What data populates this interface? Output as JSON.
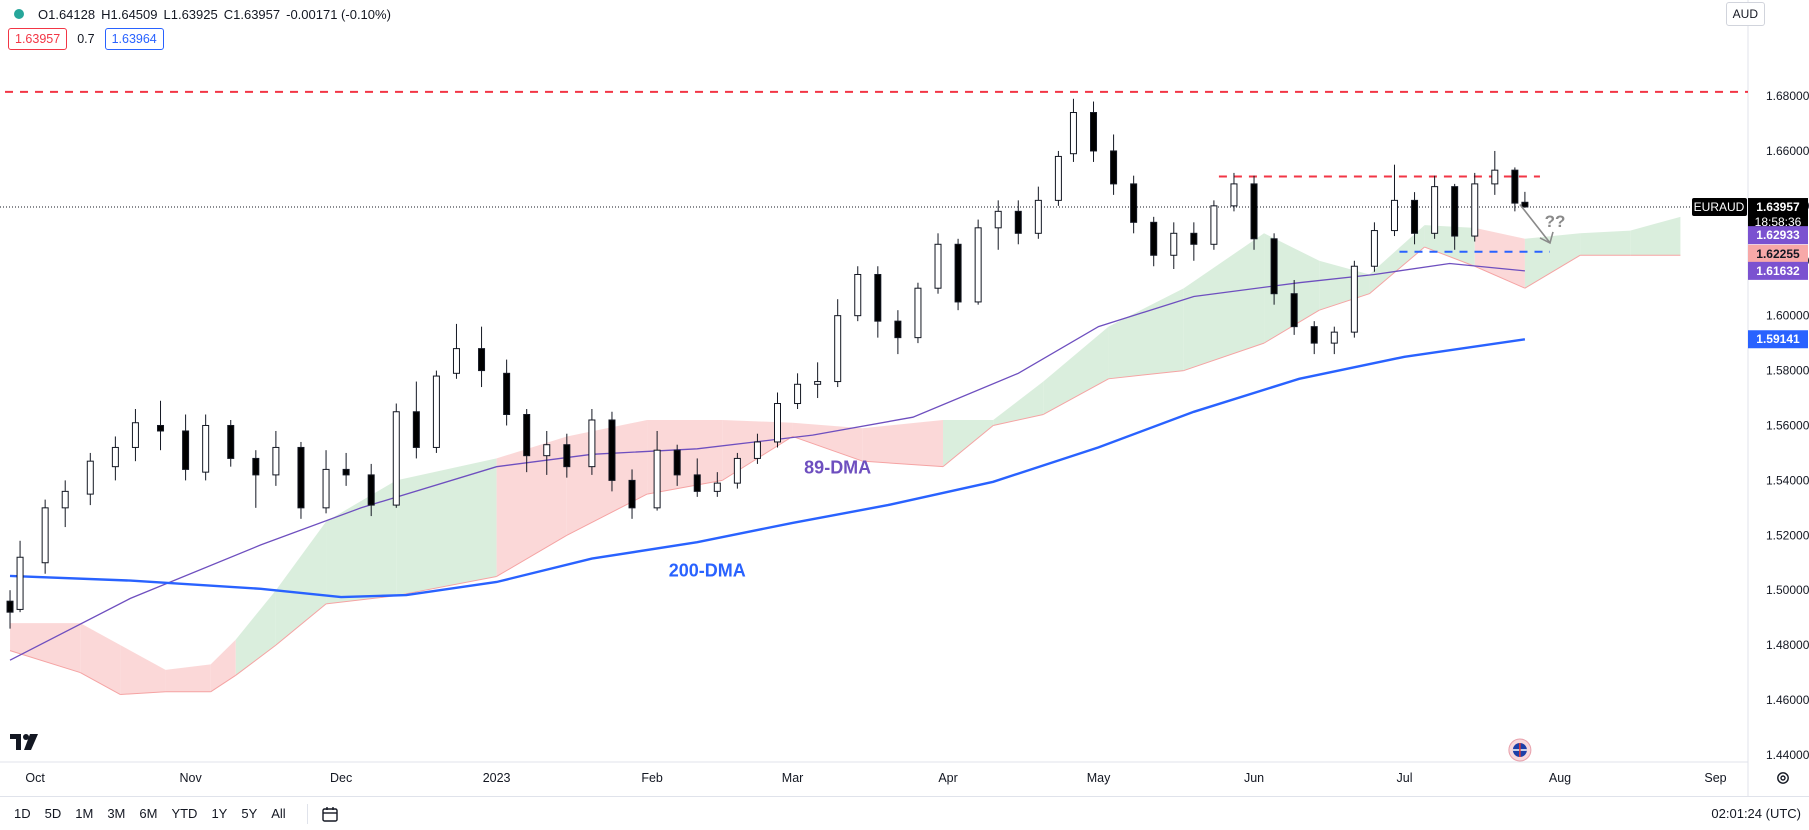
{
  "legend": {
    "open": "O1.64128",
    "high": "H1.64509",
    "low": "L1.63925",
    "close": "C1.63957",
    "change": "-0.00171 (-0.10%)",
    "bid": "1.63957",
    "spread": "0.7",
    "ask": "1.63964"
  },
  "currency": "AUD",
  "symbol_tag": "EURAUD",
  "countdown": "18:58:36",
  "time_ranges": [
    "1D",
    "5D",
    "1M",
    "3M",
    "6M",
    "YTD",
    "1Y",
    "5Y",
    "All"
  ],
  "clock": "02:01:24 (UTC)",
  "colors": {
    "up": "#ffffff",
    "down": "#000000",
    "dma200": "#2962ff",
    "dma89": "#6e4fbf",
    "cloud_bull": "#d6ecd9",
    "cloud_bear": "#fbd4d4",
    "resistance": "#f23645",
    "support": "#2962ff"
  },
  "chart_data": {
    "type": "candlestick",
    "y_ticks": [
      "1.68000",
      "1.66000",
      "1.64000",
      "1.62000",
      "1.60000",
      "1.58000",
      "1.56000",
      "1.54000",
      "1.52000",
      "1.50000",
      "1.48000",
      "1.46000",
      "1.44000"
    ],
    "ylim": [
      1.4254,
      1.6924
    ],
    "x_ticks": [
      "Oct",
      "Nov",
      "Dec",
      "2023",
      "Feb",
      "Mar",
      "Apr",
      "May",
      "Jun",
      "Jul",
      "Aug",
      "Sep"
    ],
    "last_price": 1.63957,
    "price_tags": [
      {
        "label": "EURAUD",
        "value": 1.63957,
        "text": "1.63957",
        "color": "#000000"
      },
      {
        "label": "",
        "value": 1.62933,
        "text": "1.62933",
        "color": "#7b52d0"
      },
      {
        "label": "",
        "value": 1.62255,
        "text": "1.62255",
        "color": "#f7a8a8"
      },
      {
        "label": "",
        "value": 1.61632,
        "text": "1.61632",
        "color": "#7b52d0"
      },
      {
        "label": "",
        "value": 1.59141,
        "text": "1.59141",
        "color": "#2962ff"
      }
    ],
    "annotations": [
      {
        "text": "89-DMA",
        "date": "2023-03-10",
        "value": 1.5425,
        "color": "#6e4fbf"
      },
      {
        "text": "200-DMA",
        "date": "2023-02-12",
        "value": 1.505,
        "color": "#2962ff"
      },
      {
        "text": "??",
        "date": "2023-07-31",
        "value": 1.6323,
        "color": "#8a8a8a"
      }
    ],
    "levels": [
      {
        "name": "upper resistance",
        "value": 1.6815,
        "from": "2022-09-25",
        "to": "2023-09-16",
        "color": "#f23645"
      },
      {
        "name": "range top",
        "value": 1.6507,
        "from": "2023-05-25",
        "to": "2023-07-28",
        "color": "#f23645"
      },
      {
        "name": "range floor",
        "value": 1.6233,
        "from": "2023-06-30",
        "to": "2023-07-30",
        "color": "#2962ff"
      }
    ],
    "arrow": {
      "from": [
        "2023-07-24",
        1.6405
      ],
      "to": [
        "2023-07-30",
        1.6265
      ]
    },
    "dma200": [
      [
        "2022-09-26",
        1.5052
      ],
      [
        "2022-10-20",
        1.5035
      ],
      [
        "2022-11-15",
        1.5005
      ],
      [
        "2022-12-01",
        1.4975
      ],
      [
        "2022-12-14",
        1.4982
      ],
      [
        "2023-01-01",
        1.503
      ],
      [
        "2023-01-20",
        1.5115
      ],
      [
        "2023-02-10",
        1.5175
      ],
      [
        "2023-03-01",
        1.5245
      ],
      [
        "2023-03-20",
        1.531
      ],
      [
        "2023-04-10",
        1.5395
      ],
      [
        "2023-05-01",
        1.552
      ],
      [
        "2023-05-20",
        1.565
      ],
      [
        "2023-06-10",
        1.577
      ],
      [
        "2023-07-01",
        1.585
      ],
      [
        "2023-07-25",
        1.5914
      ]
    ],
    "dma89": [
      [
        "2022-09-26",
        1.4745
      ],
      [
        "2022-10-20",
        1.497
      ],
      [
        "2022-11-15",
        1.5165
      ],
      [
        "2022-12-05",
        1.53
      ],
      [
        "2023-01-01",
        1.545
      ],
      [
        "2023-01-20",
        1.5495
      ],
      [
        "2023-02-10",
        1.5515
      ],
      [
        "2023-03-05",
        1.5565
      ],
      [
        "2023-03-25",
        1.563
      ],
      [
        "2023-04-15",
        1.579
      ],
      [
        "2023-05-01",
        1.596
      ],
      [
        "2023-05-20",
        1.607
      ],
      [
        "2023-06-10",
        1.612
      ],
      [
        "2023-06-25",
        1.615
      ],
      [
        "2023-07-10",
        1.619
      ],
      [
        "2023-07-25",
        1.6163
      ]
    ],
    "cloud": [
      [
        "2022-09-26",
        1.488,
        1.478
      ],
      [
        "2022-10-10",
        1.488,
        1.47
      ],
      [
        "2022-10-18",
        1.48,
        1.462
      ],
      [
        "2022-10-27",
        1.471,
        1.463
      ],
      [
        "2022-11-05",
        1.473,
        1.463
      ],
      [
        "2022-11-10",
        1.482,
        1.469
      ],
      [
        "2022-11-18",
        1.5,
        1.48
      ],
      [
        "2022-11-28",
        1.525,
        1.495
      ],
      [
        "2022-12-12",
        1.54,
        1.498
      ],
      [
        "2023-01-01",
        1.548,
        1.505
      ],
      [
        "2023-01-15",
        1.556,
        1.52
      ],
      [
        "2023-01-31",
        1.562,
        1.535
      ],
      [
        "2023-02-15",
        1.562,
        1.54
      ],
      [
        "2023-03-01",
        1.561,
        1.556
      ],
      [
        "2023-03-15",
        1.559,
        1.547
      ],
      [
        "2023-03-31",
        1.562,
        1.545
      ],
      [
        "2023-04-10",
        1.562,
        1.56
      ],
      [
        "2023-04-20",
        1.576,
        1.564
      ],
      [
        "2023-05-03",
        1.596,
        1.577
      ],
      [
        "2023-05-18",
        1.61,
        1.58
      ],
      [
        "2023-06-03",
        1.63,
        1.59
      ],
      [
        "2023-06-14",
        1.62,
        1.602
      ],
      [
        "2023-06-24",
        1.615,
        1.608
      ],
      [
        "2023-07-05",
        1.633,
        1.625
      ],
      [
        "2023-07-15",
        1.632,
        1.618
      ],
      [
        "2023-07-25",
        1.628,
        1.61
      ],
      [
        "2023-08-05",
        1.63,
        1.622
      ],
      [
        "2023-08-15",
        1.631,
        1.622
      ],
      [
        "2023-08-25",
        1.636,
        1.622
      ]
    ],
    "candles": [
      [
        "2022-09-26",
        1.496,
        1.5,
        1.486,
        1.492
      ],
      [
        "2022-09-28",
        1.493,
        1.518,
        1.492,
        1.512
      ],
      [
        "2022-10-03",
        1.51,
        1.533,
        1.506,
        1.53
      ],
      [
        "2022-10-07",
        1.53,
        1.54,
        1.523,
        1.536
      ],
      [
        "2022-10-12",
        1.535,
        1.55,
        1.531,
        1.547
      ],
      [
        "2022-10-17",
        1.545,
        1.556,
        1.54,
        1.552
      ],
      [
        "2022-10-21",
        1.552,
        1.566,
        1.547,
        1.561
      ],
      [
        "2022-10-26",
        1.56,
        1.569,
        1.551,
        1.558
      ],
      [
        "2022-10-31",
        1.558,
        1.564,
        1.54,
        1.544
      ],
      [
        "2022-11-04",
        1.543,
        1.564,
        1.54,
        1.56
      ],
      [
        "2022-11-09",
        1.56,
        1.562,
        1.545,
        1.548
      ],
      [
        "2022-11-14",
        1.548,
        1.551,
        1.53,
        1.542
      ],
      [
        "2022-11-18",
        1.542,
        1.558,
        1.538,
        1.552
      ],
      [
        "2022-11-23",
        1.552,
        1.554,
        1.526,
        1.53
      ],
      [
        "2022-11-28",
        1.53,
        1.551,
        1.528,
        1.544
      ],
      [
        "2022-12-02",
        1.544,
        1.55,
        1.538,
        1.542
      ],
      [
        "2022-12-07",
        1.542,
        1.546,
        1.527,
        1.531
      ],
      [
        "2022-12-12",
        1.531,
        1.568,
        1.53,
        1.565
      ],
      [
        "2022-12-16",
        1.565,
        1.576,
        1.548,
        1.552
      ],
      [
        "2022-12-20",
        1.552,
        1.58,
        1.55,
        1.578
      ],
      [
        "2022-12-24",
        1.579,
        1.597,
        1.577,
        1.588
      ],
      [
        "2022-12-29",
        1.588,
        1.596,
        1.574,
        1.58
      ],
      [
        "2023-01-03",
        1.579,
        1.584,
        1.56,
        1.564
      ],
      [
        "2023-01-07",
        1.564,
        1.566,
        1.543,
        1.549
      ],
      [
        "2023-01-11",
        1.549,
        1.558,
        1.542,
        1.553
      ],
      [
        "2023-01-15",
        1.553,
        1.557,
        1.541,
        1.545
      ],
      [
        "2023-01-20",
        1.545,
        1.566,
        1.542,
        1.562
      ],
      [
        "2023-01-24",
        1.562,
        1.565,
        1.536,
        1.54
      ],
      [
        "2023-01-28",
        1.54,
        1.544,
        1.526,
        1.53
      ],
      [
        "2023-02-02",
        1.53,
        1.558,
        1.529,
        1.551
      ],
      [
        "2023-02-06",
        1.551,
        1.553,
        1.538,
        1.542
      ],
      [
        "2023-02-10",
        1.542,
        1.548,
        1.534,
        1.536
      ],
      [
        "2023-02-14",
        1.536,
        1.543,
        1.534,
        1.539
      ],
      [
        "2023-02-18",
        1.539,
        1.55,
        1.537,
        1.548
      ],
      [
        "2023-02-22",
        1.548,
        1.557,
        1.546,
        1.554
      ],
      [
        "2023-02-26",
        1.554,
        1.572,
        1.552,
        1.568
      ],
      [
        "2023-03-02",
        1.568,
        1.579,
        1.566,
        1.575
      ],
      [
        "2023-03-06",
        1.575,
        1.583,
        1.57,
        1.576
      ],
      [
        "2023-03-10",
        1.576,
        1.606,
        1.574,
        1.6
      ],
      [
        "2023-03-14",
        1.6,
        1.618,
        1.598,
        1.615
      ],
      [
        "2023-03-18",
        1.615,
        1.618,
        1.592,
        1.598
      ],
      [
        "2023-03-22",
        1.598,
        1.602,
        1.586,
        1.592
      ],
      [
        "2023-03-26",
        1.592,
        1.612,
        1.59,
        1.61
      ],
      [
        "2023-03-30",
        1.61,
        1.63,
        1.608,
        1.626
      ],
      [
        "2023-04-03",
        1.626,
        1.628,
        1.602,
        1.605
      ],
      [
        "2023-04-07",
        1.605,
        1.635,
        1.604,
        1.632
      ],
      [
        "2023-04-11",
        1.632,
        1.642,
        1.624,
        1.638
      ],
      [
        "2023-04-15",
        1.638,
        1.642,
        1.626,
        1.63
      ],
      [
        "2023-04-19",
        1.63,
        1.647,
        1.628,
        1.642
      ],
      [
        "2023-04-23",
        1.642,
        1.66,
        1.64,
        1.658
      ],
      [
        "2023-04-26",
        1.659,
        1.679,
        1.656,
        1.674
      ],
      [
        "2023-04-30",
        1.674,
        1.678,
        1.656,
        1.66
      ],
      [
        "2023-05-04",
        1.66,
        1.666,
        1.644,
        1.648
      ],
      [
        "2023-05-08",
        1.648,
        1.651,
        1.63,
        1.634
      ],
      [
        "2023-05-12",
        1.634,
        1.636,
        1.618,
        1.622
      ],
      [
        "2023-05-16",
        1.622,
        1.634,
        1.617,
        1.63
      ],
      [
        "2023-05-20",
        1.63,
        1.634,
        1.62,
        1.626
      ],
      [
        "2023-05-24",
        1.626,
        1.642,
        1.624,
        1.64
      ],
      [
        "2023-05-28",
        1.64,
        1.652,
        1.638,
        1.648
      ],
      [
        "2023-06-01",
        1.648,
        1.651,
        1.624,
        1.628
      ],
      [
        "2023-06-05",
        1.628,
        1.63,
        1.604,
        1.608
      ],
      [
        "2023-06-09",
        1.608,
        1.613,
        1.593,
        1.596
      ],
      [
        "2023-06-13",
        1.596,
        1.598,
        1.586,
        1.59
      ],
      [
        "2023-06-17",
        1.59,
        1.596,
        1.586,
        1.594
      ],
      [
        "2023-06-21",
        1.594,
        1.62,
        1.592,
        1.618
      ],
      [
        "2023-06-25",
        1.618,
        1.634,
        1.616,
        1.631
      ],
      [
        "2023-06-29",
        1.631,
        1.655,
        1.629,
        1.642
      ],
      [
        "2023-07-03",
        1.642,
        1.645,
        1.626,
        1.63
      ],
      [
        "2023-07-07",
        1.63,
        1.651,
        1.628,
        1.647
      ],
      [
        "2023-07-11",
        1.647,
        1.648,
        1.624,
        1.629
      ],
      [
        "2023-07-15",
        1.629,
        1.652,
        1.627,
        1.648
      ],
      [
        "2023-07-19",
        1.648,
        1.66,
        1.644,
        1.653
      ],
      [
        "2023-07-23",
        1.653,
        1.654,
        1.638,
        1.641
      ],
      [
        "2023-07-25",
        1.6413,
        1.6451,
        1.6393,
        1.6396
      ]
    ]
  }
}
